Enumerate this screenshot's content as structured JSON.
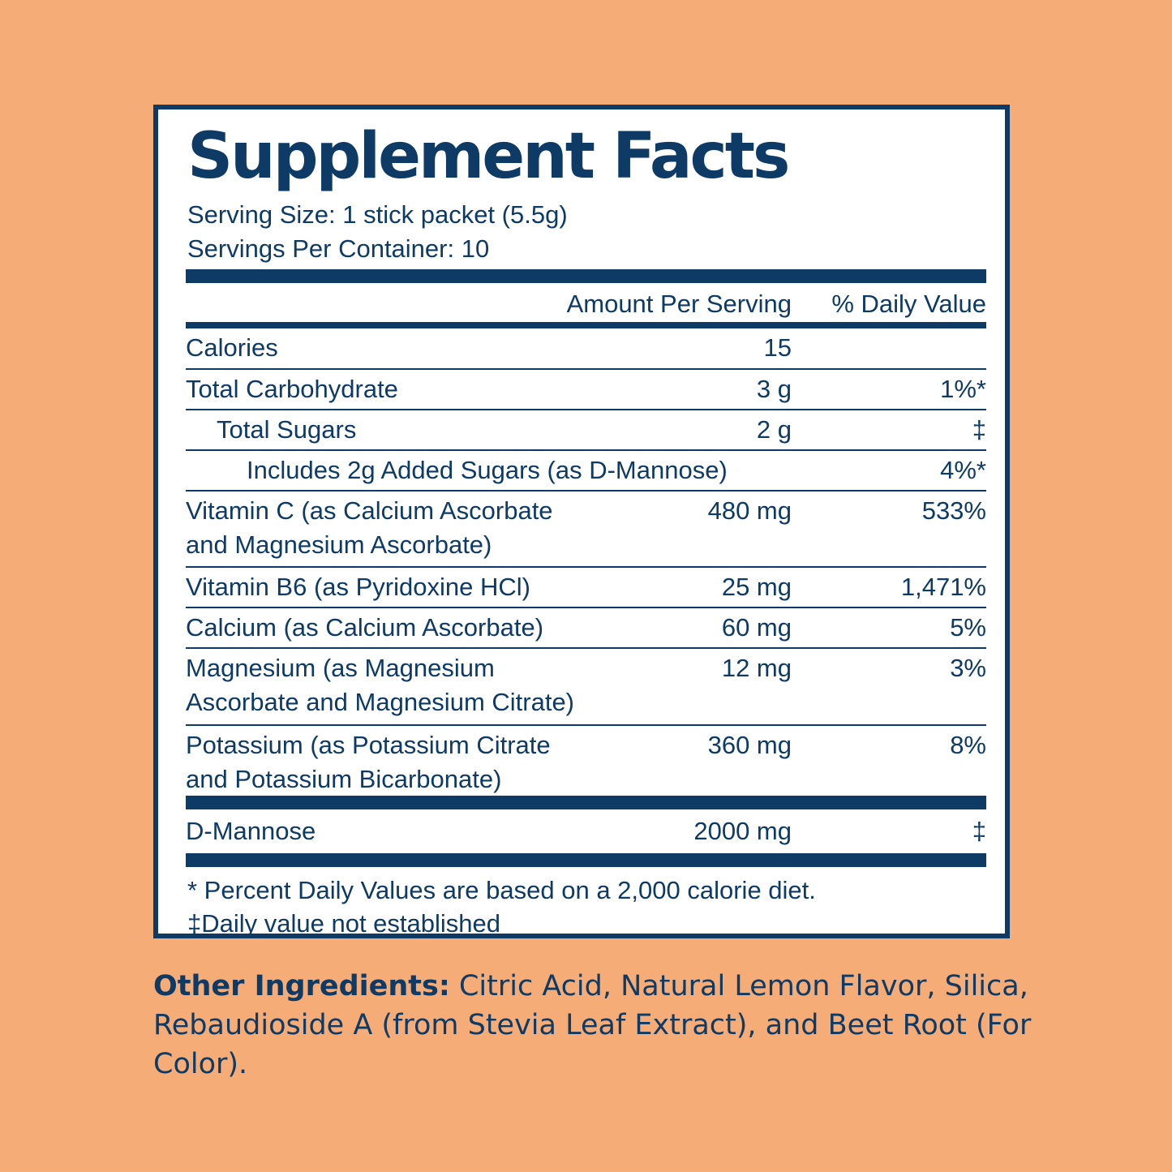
{
  "title": "Supplement Facts",
  "serving_size": "Serving Size: 1 stick packet (5.5g)",
  "servings_per_container": "Servings Per Container: 10",
  "header": {
    "amount": "Amount Per Serving",
    "daily_value": "% Daily Value"
  },
  "rows": [
    {
      "name": "Calories",
      "amount": "15",
      "dv": ""
    },
    {
      "name": "Total Carbohydrate",
      "amount": "3 g",
      "dv": "1%*"
    },
    {
      "name": "Total Sugars",
      "amount": "2 g",
      "dv": "‡"
    },
    {
      "name": "Includes 2g Added Sugars (as D-Mannose)",
      "amount": "",
      "dv": "4%*"
    },
    {
      "name_line1": "Vitamin C (as Calcium Ascorbate",
      "name_line2": "and Magnesium Ascorbate)",
      "amount": "480 mg",
      "dv": "533%"
    },
    {
      "name": "Vitamin B6 (as Pyridoxine HCl)",
      "amount": "25 mg",
      "dv": "1,471%"
    },
    {
      "name": "Calcium (as Calcium Ascorbate)",
      "amount": "60 mg",
      "dv": "5%"
    },
    {
      "name_line1": "Magnesium (as Magnesium",
      "name_line2": "Ascorbate and Magnesium Citrate)",
      "amount": "12 mg",
      "dv": "3%"
    },
    {
      "name_line1": "Potassium (as Potassium Citrate",
      "name_line2": "and Potassium Bicarbonate)",
      "amount": "360 mg",
      "dv": "8%"
    }
  ],
  "dmannose": {
    "name": "D-Mannose",
    "amount": "2000 mg",
    "dv": "‡"
  },
  "footnotes": {
    "percent": "* Percent Daily Values are based on a 2,000 calorie diet.",
    "dagger": "‡Daily value not established"
  },
  "other_ingredients": {
    "label": "Other Ingredients:",
    "text": " Citric Acid, Natural Lemon Flavor, Silica, Rebaudioside A (from Stevia Leaf Extract), and Beet Root (For Color)."
  },
  "colors": {
    "background": "#F6AC77",
    "navy": "#0E3A66",
    "panel": "#FFFFFF"
  }
}
